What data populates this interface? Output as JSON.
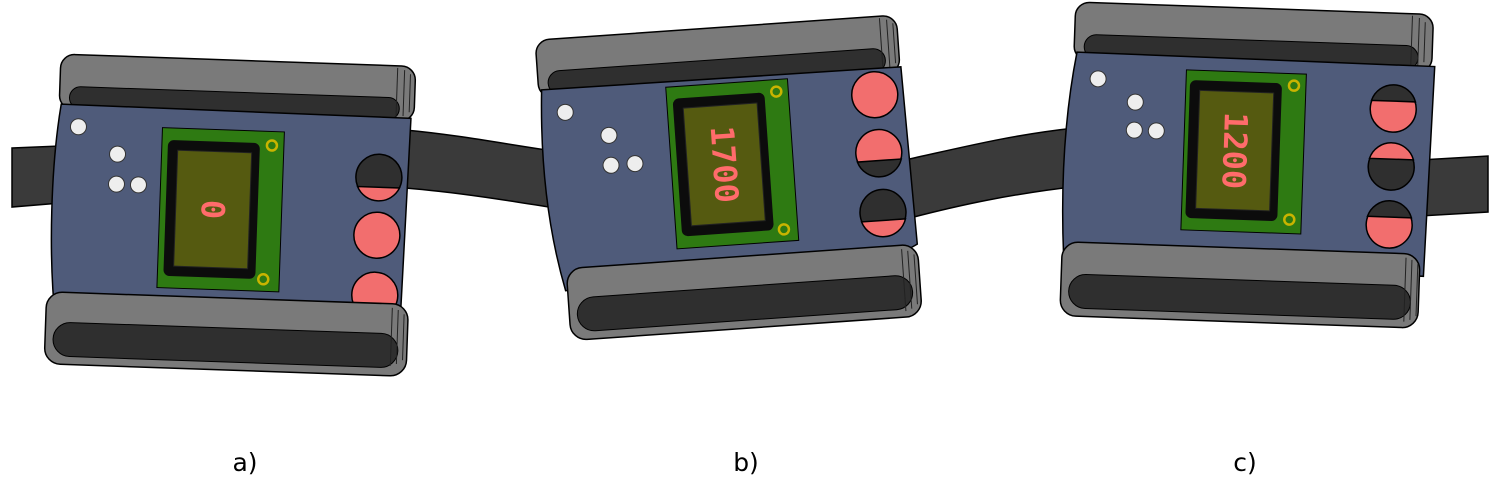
{
  "colors": {
    "case": "#4f5b7a",
    "strap": "#3a3a3a",
    "bumper": "#6d6d6d",
    "bumper_inner": "#2f2f2f",
    "pcb": "#2e7a12",
    "lcd_bezel": "#0c0c0c",
    "lcd_glass": "#555a10",
    "lcd_digits": "#ff6b6b",
    "button": "#f26e6e",
    "screw": "#eeeeee",
    "mount_hole": "#c9b400"
  },
  "devices": [
    {
      "caption": "a)",
      "display_value": "0",
      "buttons_state": [
        "pressed",
        "released",
        "released"
      ]
    },
    {
      "caption": "b)",
      "display_value": "1700",
      "buttons_state": [
        "released",
        "released",
        "pressed"
      ]
    },
    {
      "caption": "c)",
      "display_value": "1200",
      "buttons_state": [
        "released",
        "pressed",
        "released"
      ]
    }
  ]
}
